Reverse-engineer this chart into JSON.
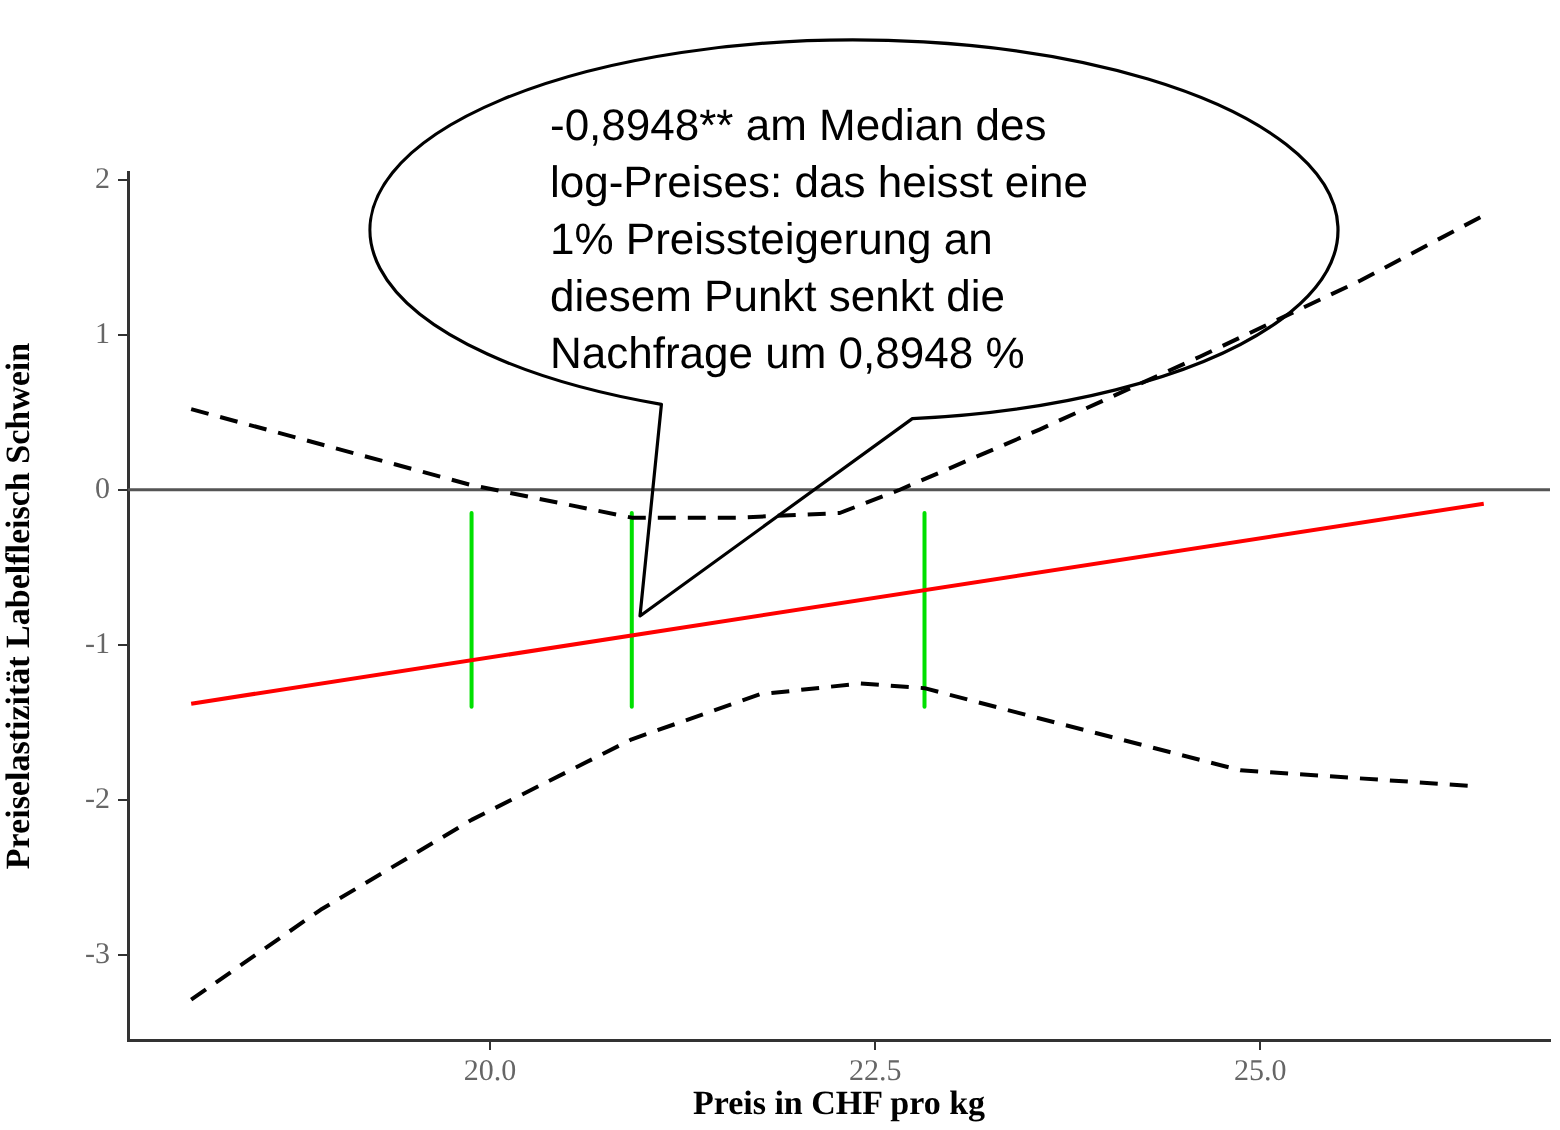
{
  "chart_data": {
    "type": "line",
    "xlabel": "Preis in CHF pro kg",
    "ylabel": "Preiselastizität Labelfleisch Schwein",
    "xlim": [
      17.65,
      26.88
    ],
    "xticks": [
      {
        "value": 20,
        "label": "20.0"
      },
      {
        "value": 22.5,
        "label": "22.5"
      },
      {
        "value": 25,
        "label": "25.0"
      }
    ],
    "ylim": [
      -3.55,
      2.05
    ],
    "yticks": [
      -3,
      -2,
      -1,
      0,
      1,
      2
    ],
    "grid": false,
    "legend": false,
    "marker": "none",
    "series": [
      {
        "type": "line",
        "color": "#ff0000",
        "line_style": "solid",
        "x": [
          18.06,
          26.45
        ],
        "values": [
          -1.38,
          -0.09
        ]
      },
      {
        "type": "line",
        "color": "#000000",
        "line_style": "dashed",
        "x": [
          18.06,
          19.88,
          20.92,
          21.6,
          22.27,
          22.66,
          23.57,
          24.61,
          25.65,
          26.45
        ],
        "values": [
          0.52,
          0.03,
          -0.18,
          -0.18,
          -0.15,
          0,
          0.39,
          0.86,
          1.35,
          1.77
        ]
      },
      {
        "type": "line",
        "color": "#000000",
        "line_style": "dashed",
        "x": [
          18.06,
          18.9,
          19.88,
          20.92,
          21.75,
          22.4,
          22.82,
          23.7,
          24.87,
          26.36
        ],
        "values": [
          -3.29,
          -2.71,
          -2.13,
          -1.61,
          -1.32,
          -1.25,
          -1.28,
          -1.51,
          -1.81,
          -1.91
        ]
      },
      {
        "type": "line",
        "color": "#00e000",
        "line_style": "solid",
        "x": [
          19.88,
          19.88
        ],
        "values": [
          -0.15,
          -1.4
        ]
      },
      {
        "type": "line",
        "color": "#00e000",
        "line_style": "solid",
        "x": [
          20.92,
          20.92
        ],
        "values": [
          -0.15,
          -1.4
        ]
      },
      {
        "type": "line",
        "color": "#00e000",
        "line_style": "solid",
        "x": [
          22.82,
          22.82
        ],
        "values": [
          -0.15,
          -1.4
        ]
      }
    ],
    "ref_lines": [
      {
        "axis": "y",
        "value": 0,
        "color": "#555555"
      }
    ],
    "annotations": [
      "-0,8948** am Median des log-Preises: das heisst eine 1% Preissteigerung an diesem Punkt senkt die Nachfrage um 0,8948 %"
    ]
  }
}
